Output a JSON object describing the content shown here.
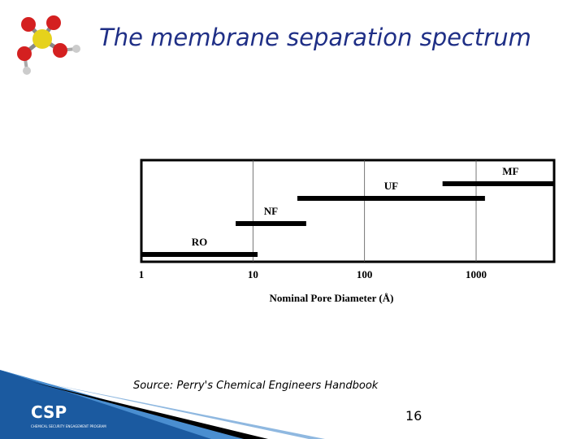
{
  "slide": {
    "title": "The membrane separation spectrum",
    "source": "Source: Perry's Chemical Engineers Handbook",
    "page_number": "16",
    "logo": {
      "name": "CSP",
      "subtitle": "CHEMICAL SECURITY ENGAGEMENT PROGRAM"
    }
  },
  "chart_data": {
    "type": "range-bar",
    "x_label": "Nominal Pore Diameter (Å)",
    "xscale": "log",
    "xlim": [
      1,
      5000
    ],
    "xticks": [
      1,
      10,
      100,
      1000
    ],
    "grid": true,
    "color": "#000000",
    "bars": [
      {
        "name": "RO",
        "low": 1,
        "high": 11
      },
      {
        "name": "NF",
        "low": 7,
        "high": 30
      },
      {
        "name": "UF",
        "low": 25,
        "high": 1200
      },
      {
        "name": "MF",
        "low": 500,
        "high": 5000
      }
    ]
  }
}
